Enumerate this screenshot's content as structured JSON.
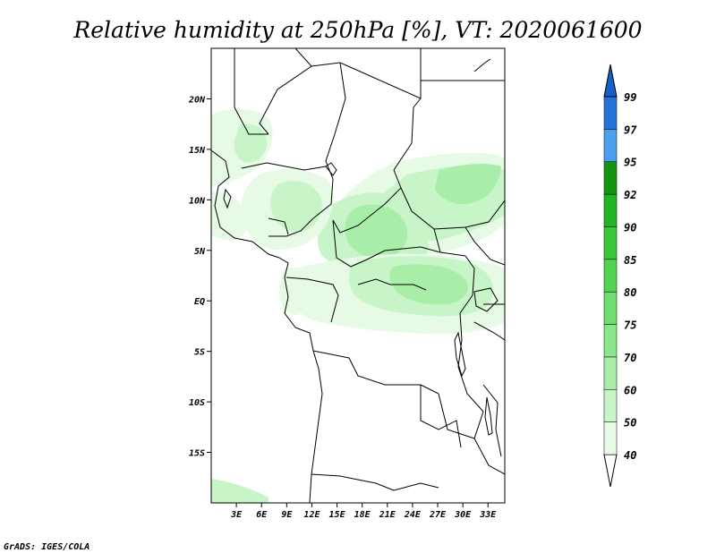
{
  "title": "Relative humidity at 250hPa [%], VT: 2020061600",
  "credit": "GrADS: IGES/COLA",
  "map": {
    "lat_ticks": [
      "20N",
      "15N",
      "10N",
      "5N",
      "EQ",
      "5S",
      "10S",
      "15S"
    ],
    "lon_ticks": [
      "3E",
      "6E",
      "9E",
      "12E",
      "15E",
      "18E",
      "21E",
      "24E",
      "27E",
      "30E",
      "33E"
    ],
    "lon_range": [
      0,
      35
    ],
    "lat_range": [
      -20,
      25
    ]
  },
  "colorbar": {
    "labels": [
      "99",
      "97",
      "95",
      "92",
      "90",
      "85",
      "80",
      "75",
      "70",
      "60",
      "50",
      "40"
    ],
    "colors": [
      "#ffffff",
      "#e6fae6",
      "#c8f5c8",
      "#a8eea8",
      "#8ae68a",
      "#6ede6e",
      "#52d452",
      "#3ac83a",
      "#22b422",
      "#129612",
      "#4aa0ee",
      "#2274dc",
      "#1460c8"
    ]
  }
}
